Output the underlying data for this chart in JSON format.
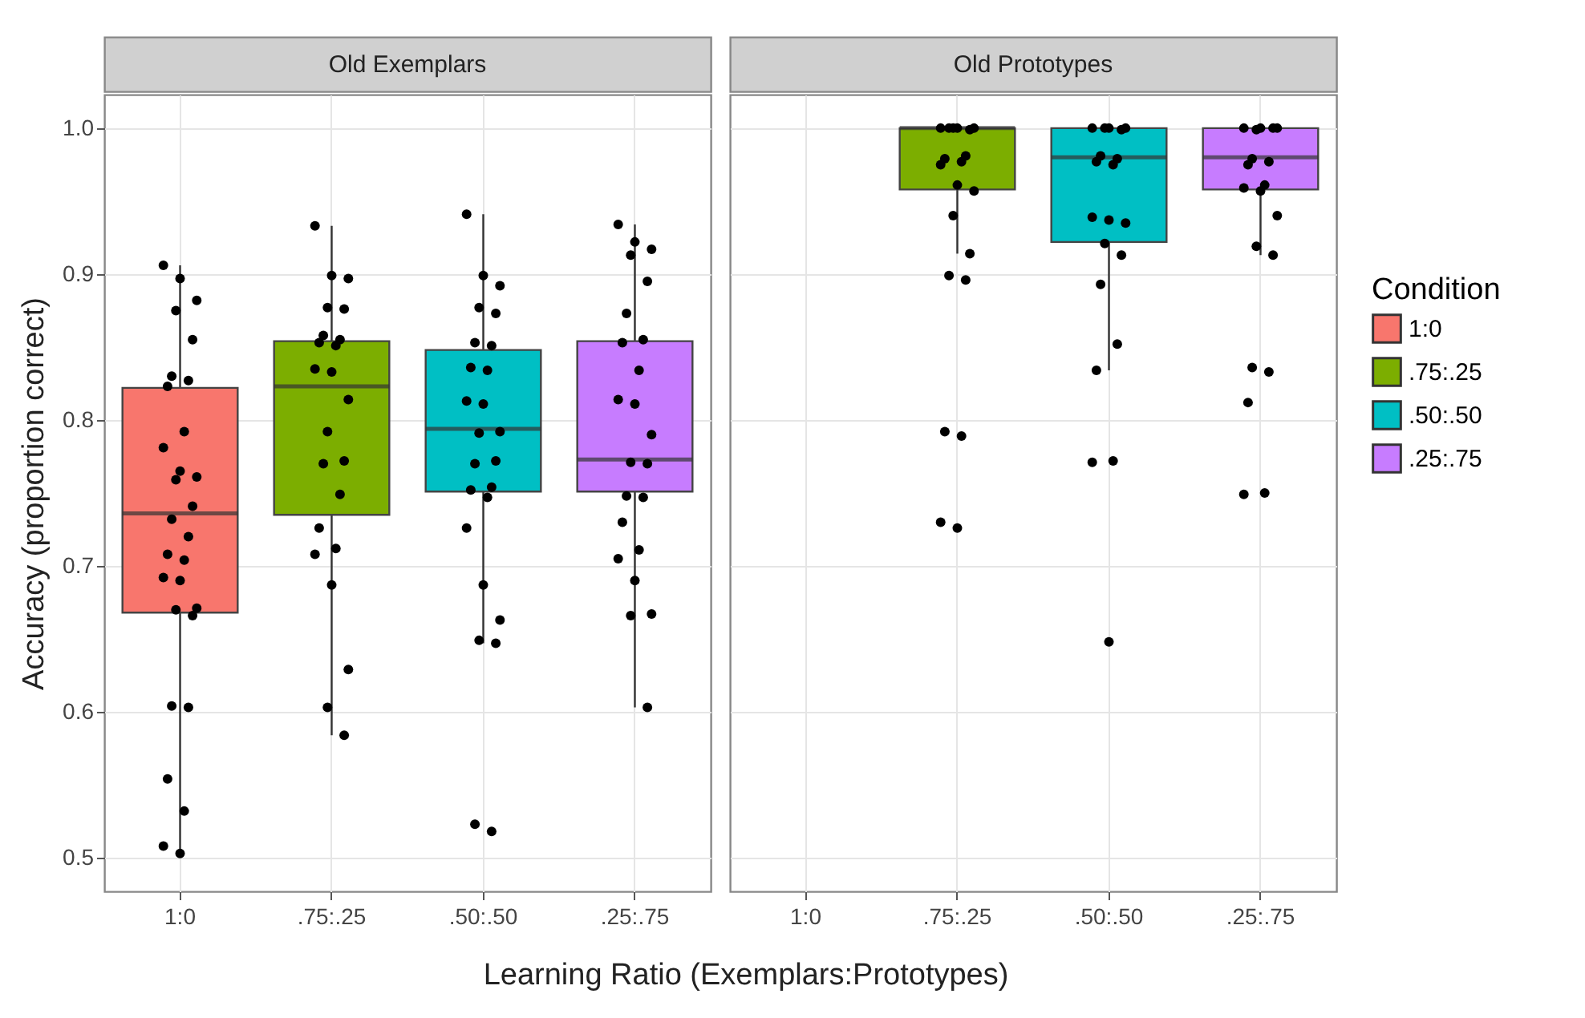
{
  "chart_data": [
    {
      "type": "box",
      "title": "Old Exemplars",
      "xlabel": "Learning Ratio (Exemplars:Prototypes)",
      "ylabel": "Accuracy (proportion correct)",
      "categories": [
        "1:0",
        ".75:.25",
        ".50:.50",
        ".25:.75"
      ],
      "ylim": [
        0.477,
        1.023
      ],
      "yticks": [
        0.5,
        0.6,
        0.7,
        0.8,
        0.9,
        {
          "value": 1,
          "label": "1.0"
        }
      ],
      "grid": true,
      "marker": "circle",
      "series": [
        {
          "type": "box",
          "color": "#f8766d",
          "boxes": [
            {
              "low": 0.503,
              "q1": 0.668,
              "median": 0.736,
              "q3": 0.822,
              "high": 0.906
            },
            null,
            null,
            null
          ]
        },
        {
          "type": "box",
          "color": "#7cae00",
          "boxes": [
            null,
            {
              "low": 0.584,
              "q1": 0.735,
              "median": 0.823,
              "q3": 0.854,
              "high": 0.933
            },
            null,
            null
          ]
        },
        {
          "type": "box",
          "color": "#00bfc4",
          "boxes": [
            null,
            null,
            {
              "low": 0.647,
              "q1": 0.751,
              "median": 0.794,
              "q3": 0.848,
              "high": 0.941
            },
            null
          ]
        },
        {
          "type": "box",
          "color": "#c77cff",
          "boxes": [
            null,
            null,
            null,
            {
              "low": 0.603,
              "q1": 0.751,
              "median": 0.773,
              "q3": 0.854,
              "high": 0.934
            }
          ]
        },
        {
          "type": "scatter",
          "color": "#000000",
          "x": [
            "1:0",
            "1:0",
            "1:0",
            "1:0",
            "1:0",
            "1:0",
            "1:0",
            "1:0",
            "1:0",
            "1:0",
            "1:0",
            "1:0",
            "1:0",
            "1:0",
            "1:0",
            "1:0",
            "1:0",
            "1:0",
            "1:0",
            "1:0",
            "1:0",
            "1:0",
            "1:0",
            "1:0",
            "1:0",
            "1:0",
            "1:0",
            "1:0",
            "1:0",
            ".75:.25",
            ".75:.25",
            ".75:.25",
            ".75:.25",
            ".75:.25",
            ".75:.25",
            ".75:.25",
            ".75:.25",
            ".75:.25",
            ".75:.25",
            ".75:.25",
            ".75:.25",
            ".75:.25",
            ".75:.25",
            ".75:.25",
            ".75:.25",
            ".75:.25",
            ".75:.25",
            ".75:.25",
            ".75:.25",
            ".75:.25",
            ".75:.25",
            ".75:.25",
            ".50:.50",
            ".50:.50",
            ".50:.50",
            ".50:.50",
            ".50:.50",
            ".50:.50",
            ".50:.50",
            ".50:.50",
            ".50:.50",
            ".50:.50",
            ".50:.50",
            ".50:.50",
            ".50:.50",
            ".50:.50",
            ".50:.50",
            ".50:.50",
            ".50:.50",
            ".50:.50",
            ".50:.50",
            ".50:.50",
            ".50:.50",
            ".50:.50",
            ".50:.50",
            ".50:.50",
            ".50:.50",
            ".25:.75",
            ".25:.75",
            ".25:.75",
            ".25:.75",
            ".25:.75",
            ".25:.75",
            ".25:.75",
            ".25:.75",
            ".25:.75",
            ".25:.75",
            ".25:.75",
            ".25:.75",
            ".25:.75",
            ".25:.75",
            ".25:.75",
            ".25:.75",
            ".25:.75",
            ".25:.75",
            ".25:.75",
            ".25:.75",
            ".25:.75",
            ".25:.75",
            ".25:.75"
          ],
          "values": [
            0.906,
            0.897,
            0.882,
            0.875,
            0.855,
            0.83,
            0.827,
            0.823,
            0.792,
            0.781,
            0.765,
            0.761,
            0.759,
            0.741,
            0.732,
            0.72,
            0.708,
            0.704,
            0.692,
            0.69,
            0.671,
            0.67,
            0.666,
            0.604,
            0.603,
            0.554,
            0.532,
            0.508,
            0.503,
            0.933,
            0.899,
            0.897,
            0.877,
            0.876,
            0.858,
            0.855,
            0.853,
            0.851,
            0.835,
            0.833,
            0.814,
            0.792,
            0.772,
            0.77,
            0.749,
            0.726,
            0.712,
            0.708,
            0.687,
            0.629,
            0.603,
            0.584,
            0.941,
            0.899,
            0.892,
            0.877,
            0.873,
            0.853,
            0.851,
            0.836,
            0.834,
            0.813,
            0.811,
            0.792,
            0.791,
            0.772,
            0.77,
            0.754,
            0.752,
            0.747,
            0.726,
            0.687,
            0.663,
            0.649,
            0.647,
            0.523,
            0.518,
            0.934,
            0.922,
            0.917,
            0.913,
            0.895,
            0.873,
            0.855,
            0.853,
            0.834,
            0.814,
            0.811,
            0.79,
            0.771,
            0.77,
            0.748,
            0.747,
            0.73,
            0.711,
            0.705,
            0.69,
            0.667,
            0.666,
            0.603
          ]
        }
      ]
    },
    {
      "type": "box",
      "title": "Old Prototypes",
      "categories": [
        "1:0",
        ".75:.25",
        ".50:.50",
        ".25:.75"
      ],
      "ylim": [
        0.477,
        1.023
      ],
      "yticks": [
        0.5,
        0.6,
        0.7,
        0.8,
        0.9,
        1
      ],
      "grid": true,
      "marker": "circle",
      "tick_labels": "x",
      "legend": "right",
      "legend_title": "Condition",
      "series": [
        {
          "type": "box",
          "name": "1:0",
          "color": "#f8766d",
          "boxes": [
            null,
            null,
            null,
            null
          ]
        },
        {
          "type": "box",
          "name": ".75:.25",
          "color": "#7cae00",
          "boxes": [
            null,
            {
              "low": 0.914,
              "q1": 0.958,
              "median": 1.0,
              "q3": 1.0,
              "high": 1.0
            },
            null,
            null
          ]
        },
        {
          "type": "box",
          "name": ".50:.50",
          "color": "#00bfc4",
          "boxes": [
            null,
            null,
            {
              "low": 0.834,
              "q1": 0.922,
              "median": 0.98,
              "q3": 1.0,
              "high": 1.0
            },
            null
          ]
        },
        {
          "type": "box",
          "name": ".25:.75",
          "color": "#c77cff",
          "boxes": [
            null,
            null,
            null,
            {
              "low": 0.913,
              "q1": 0.958,
              "median": 0.98,
              "q3": 1.0,
              "high": 1.0
            }
          ]
        },
        {
          "type": "scatter",
          "color": "#000000",
          "x": [
            ".75:.25",
            ".75:.25",
            ".75:.25",
            ".75:.25",
            ".75:.25",
            ".75:.25",
            ".75:.25",
            ".75:.25",
            ".75:.25",
            ".75:.25",
            ".75:.25",
            ".75:.25",
            ".75:.25",
            ".75:.25",
            ".75:.25",
            ".75:.25",
            ".75:.25",
            ".75:.25",
            ".75:.25",
            ".75:.25",
            ".50:.50",
            ".50:.50",
            ".50:.50",
            ".50:.50",
            ".50:.50",
            ".50:.50",
            ".50:.50",
            ".50:.50",
            ".50:.50",
            ".50:.50",
            ".50:.50",
            ".50:.50",
            ".50:.50",
            ".50:.50",
            ".50:.50",
            ".50:.50",
            ".50:.50",
            ".50:.50",
            ".50:.50",
            ".50:.50",
            ".25:.75",
            ".25:.75",
            ".25:.75",
            ".25:.75",
            ".25:.75",
            ".25:.75",
            ".25:.75",
            ".25:.75",
            ".25:.75",
            ".25:.75",
            ".25:.75",
            ".25:.75",
            ".25:.75",
            ".25:.75",
            ".25:.75",
            ".25:.75",
            ".25:.75",
            ".25:.75",
            ".25:.75"
          ],
          "values": [
            1.0,
            1.0,
            1.0,
            1.0,
            0.999,
            1.0,
            0.981,
            0.979,
            0.977,
            0.975,
            0.961,
            0.957,
            0.94,
            0.914,
            0.899,
            0.896,
            0.792,
            0.789,
            0.73,
            0.726,
            1.0,
            1.0,
            1.0,
            1.0,
            0.999,
            0.981,
            0.979,
            0.977,
            0.975,
            0.939,
            0.937,
            0.935,
            0.921,
            0.913,
            0.893,
            0.852,
            0.834,
            0.772,
            0.771,
            0.648,
            1.0,
            1.0,
            1.0,
            0.999,
            1.0,
            0.979,
            0.977,
            0.975,
            0.961,
            0.959,
            0.957,
            0.94,
            0.919,
            0.913,
            0.836,
            0.833,
            0.812,
            0.75,
            0.749
          ]
        }
      ]
    }
  ]
}
